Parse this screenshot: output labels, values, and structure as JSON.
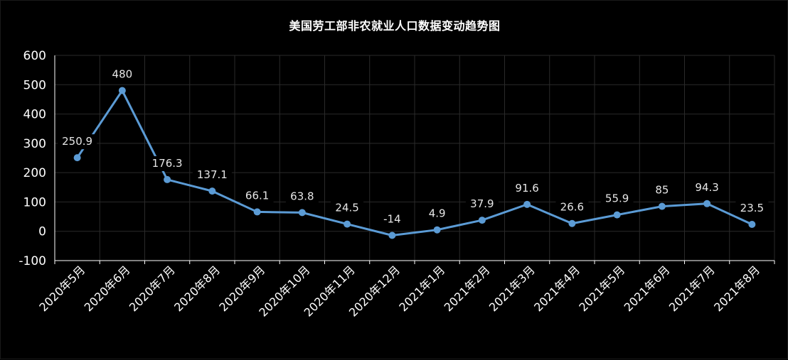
{
  "chart_data": {
    "type": "line",
    "title": "美国劳工部非农就业人口数据变动趋势图",
    "categories": [
      "2020年5月",
      "2020年6月",
      "2020年7月",
      "2020年8月",
      "2020年9月",
      "2020年10月",
      "2020年11月",
      "2020年12月",
      "2021年1月",
      "2021年2月",
      "2021年3月",
      "2021年4月",
      "2021年5月",
      "2021年6月",
      "2021年7月",
      "2021年8月"
    ],
    "series": [
      {
        "values": [
          250.9,
          480,
          176.3,
          137.1,
          66.1,
          63.8,
          24.5,
          -14,
          4.9,
          37.9,
          91.6,
          26.6,
          55.9,
          85,
          94.3,
          23.5
        ],
        "labels": [
          "250.9",
          "480",
          "176.3",
          "137.1",
          "66.1",
          "63.8",
          "24.5",
          "-14",
          "4.9",
          "37.9",
          "91.6",
          "26.6",
          "55.9",
          "85",
          "94.3",
          "23.5"
        ]
      }
    ],
    "yticks": [
      "600",
      "500",
      "400",
      "300",
      "200",
      "100",
      "0",
      "-100"
    ],
    "ylim": [
      -100,
      600
    ],
    "grid": true,
    "legend": "none",
    "colors": {
      "line": "#5b9bd5",
      "background": "#000000",
      "grid": "#2a2a2a",
      "axis": "#ffffff"
    }
  }
}
